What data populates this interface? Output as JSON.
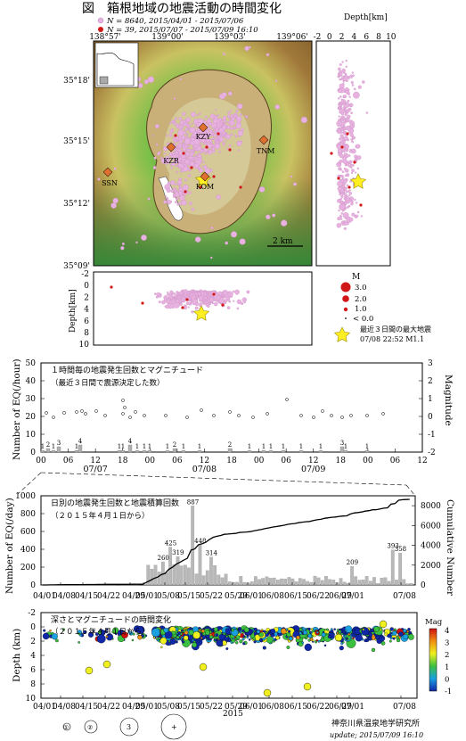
{
  "header": {
    "fig_label": "図",
    "title": "箱根地域の地震活動の時間変化",
    "legend_pink": "N = 8640,  2015/04/01 - 2015/07/06",
    "legend_red": "N = 39,      2015/07/07 - 2015/07/09 16:10",
    "colors": {
      "pink": "#e8b2e0",
      "red": "#d01818",
      "star": "#ffee22"
    }
  },
  "map": {
    "lon_ticks": [
      "138°57'",
      "139°00'",
      "139°03'",
      "139°06'"
    ],
    "lat_ticks": [
      "35°18'",
      "35°15'",
      "35°12'",
      "35°09'"
    ],
    "stations": [
      "KZY",
      "KZR",
      "KOM",
      "TNM",
      "SSN"
    ],
    "scale_label": "2 km",
    "depth_top_label": "Depth[km]",
    "depth_top_ticks": [
      "-2",
      "0",
      "2",
      "4",
      "6",
      "8",
      "10"
    ],
    "depth_left_label": "Depth[km]",
    "depth_left_ticks": [
      "-2",
      "0",
      "2",
      "4",
      "6",
      "8",
      "10"
    ]
  },
  "mag_legend": {
    "title": "M",
    "items": [
      "3.0",
      "2.0",
      "1.0",
      "< 0.0"
    ],
    "star_label_1": "最近３日間の最大地震",
    "star_label_2": "07/08 22:52 M1.1"
  },
  "hourly": {
    "caption_1": "１時間毎の地震発生回数とマグニチュード",
    "caption_2": "（最近３日間で震源決定した数）",
    "ylabel_left": "Number of EQ(/hour)",
    "ylabel_right": "Magnitude",
    "y_ticks": [
      "0",
      "10",
      "20",
      "30",
      "40",
      "50"
    ],
    "mag_ticks": [
      "-2",
      "-1",
      "0",
      "1",
      "2",
      "3"
    ],
    "x_ticks": [
      "00",
      "06",
      "12",
      "18",
      "00",
      "06",
      "12",
      "18",
      "00",
      "06",
      "12",
      "18",
      "00",
      "06",
      "12"
    ],
    "date_labels": [
      "07/07",
      "07/08",
      "07/09"
    ],
    "counts": [
      "1",
      "2",
      "1",
      "3",
      "1",
      "4",
      "1",
      "1",
      "4",
      "1",
      "1",
      "1",
      "1",
      "2",
      "1",
      "1",
      "2",
      "1",
      "1",
      "1",
      "1",
      "1",
      "1",
      "3",
      "1",
      "1"
    ]
  },
  "daily": {
    "caption_1": "日別の地震発生回数と地震積算回数",
    "caption_2": "（２０１５年４月１日から）",
    "ylabel_left": "Number of EQ(/day)",
    "ylabel_right": "Cumulative Number",
    "y_ticks": [
      "0",
      "200",
      "400",
      "600",
      "800",
      "1000"
    ],
    "cum_ticks": [
      "0",
      "2000",
      "4000",
      "6000",
      "8000"
    ],
    "x_ticks": [
      "04/01",
      "04/08",
      "04/15",
      "04/22",
      "04/29",
      "05/01",
      "05/08",
      "05/15",
      "05/22",
      "05/29",
      "06/01",
      "06/08",
      "06/15",
      "06/22",
      "06/29",
      "07/01",
      "07/08"
    ],
    "peak_labels": [
      "887",
      "425",
      "448",
      "319",
      "314",
      "260",
      "209",
      "393",
      "358"
    ],
    "year_label": "2015"
  },
  "depth_time": {
    "caption_1": "深さとマグニチュードの時間変化",
    "caption_2": "（２０１５年４月１日から）",
    "ylabel": "Depth (km)",
    "y_ticks": [
      "-2",
      "0",
      "2",
      "4",
      "6",
      "8",
      "10"
    ],
    "colorbar_title": "Mag",
    "colorbar_ticks": [
      "4",
      "3",
      "2",
      "1",
      "0",
      "-1"
    ],
    "x_ticks": [
      "04/01",
      "04/08",
      "04/15",
      "04/22",
      "04/29",
      "05/01",
      "05/08",
      "05/15",
      "05/22",
      "05/29",
      "06/01",
      "06/08",
      "06/15",
      "06/22",
      "06/29",
      "07/01",
      "07/08"
    ],
    "year_label": "2015",
    "size_legend": [
      "①",
      "②",
      "3",
      "+"
    ]
  },
  "footer": {
    "org": "神奈川県温泉地学研究所",
    "update": "update; 2015/07/09 16:10"
  },
  "chart_data": [
    {
      "type": "scatter",
      "title": "箱根地域の地震活動の時間変化",
      "xlabel": "",
      "ylabel": "",
      "x_ticks": [
        "138°57'",
        "139°00'",
        "139°03'",
        "139°06'"
      ],
      "y_ticks": [
        "35°18'",
        "35°15'",
        "35°12'",
        "35°09'"
      ],
      "series": [
        {
          "name": "N = 8640, 2015/04/01 - 2015/07/06"
        },
        {
          "name": "N = 39, 2015/07/07 - 2015/07/09 16:10"
        }
      ]
    },
    {
      "type": "bar",
      "xlabel": "",
      "ylabel": "Number of EQ(/hour)",
      "ylim": [
        0,
        50
      ],
      "y2label": "Magnitude",
      "y2lim": [
        -2,
        3
      ],
      "categories": [
        "07/07",
        "07/08",
        "07/09"
      ]
    },
    {
      "type": "bar",
      "xlabel": "",
      "ylabel": "Number of EQ(/day)",
      "ylim": [
        0,
        1000
      ],
      "y2label": "Cumulative Number",
      "y2lim": [
        0,
        9000
      ],
      "peak_values": [
        887,
        425,
        448,
        319,
        314,
        260,
        209,
        393,
        358
      ]
    },
    {
      "type": "scatter",
      "xlabel": "2015",
      "ylabel": "Depth (km)",
      "ylim": [
        10,
        -2
      ],
      "colorbar": "Mag",
      "colorbar_range": [
        -1,
        4
      ]
    }
  ]
}
